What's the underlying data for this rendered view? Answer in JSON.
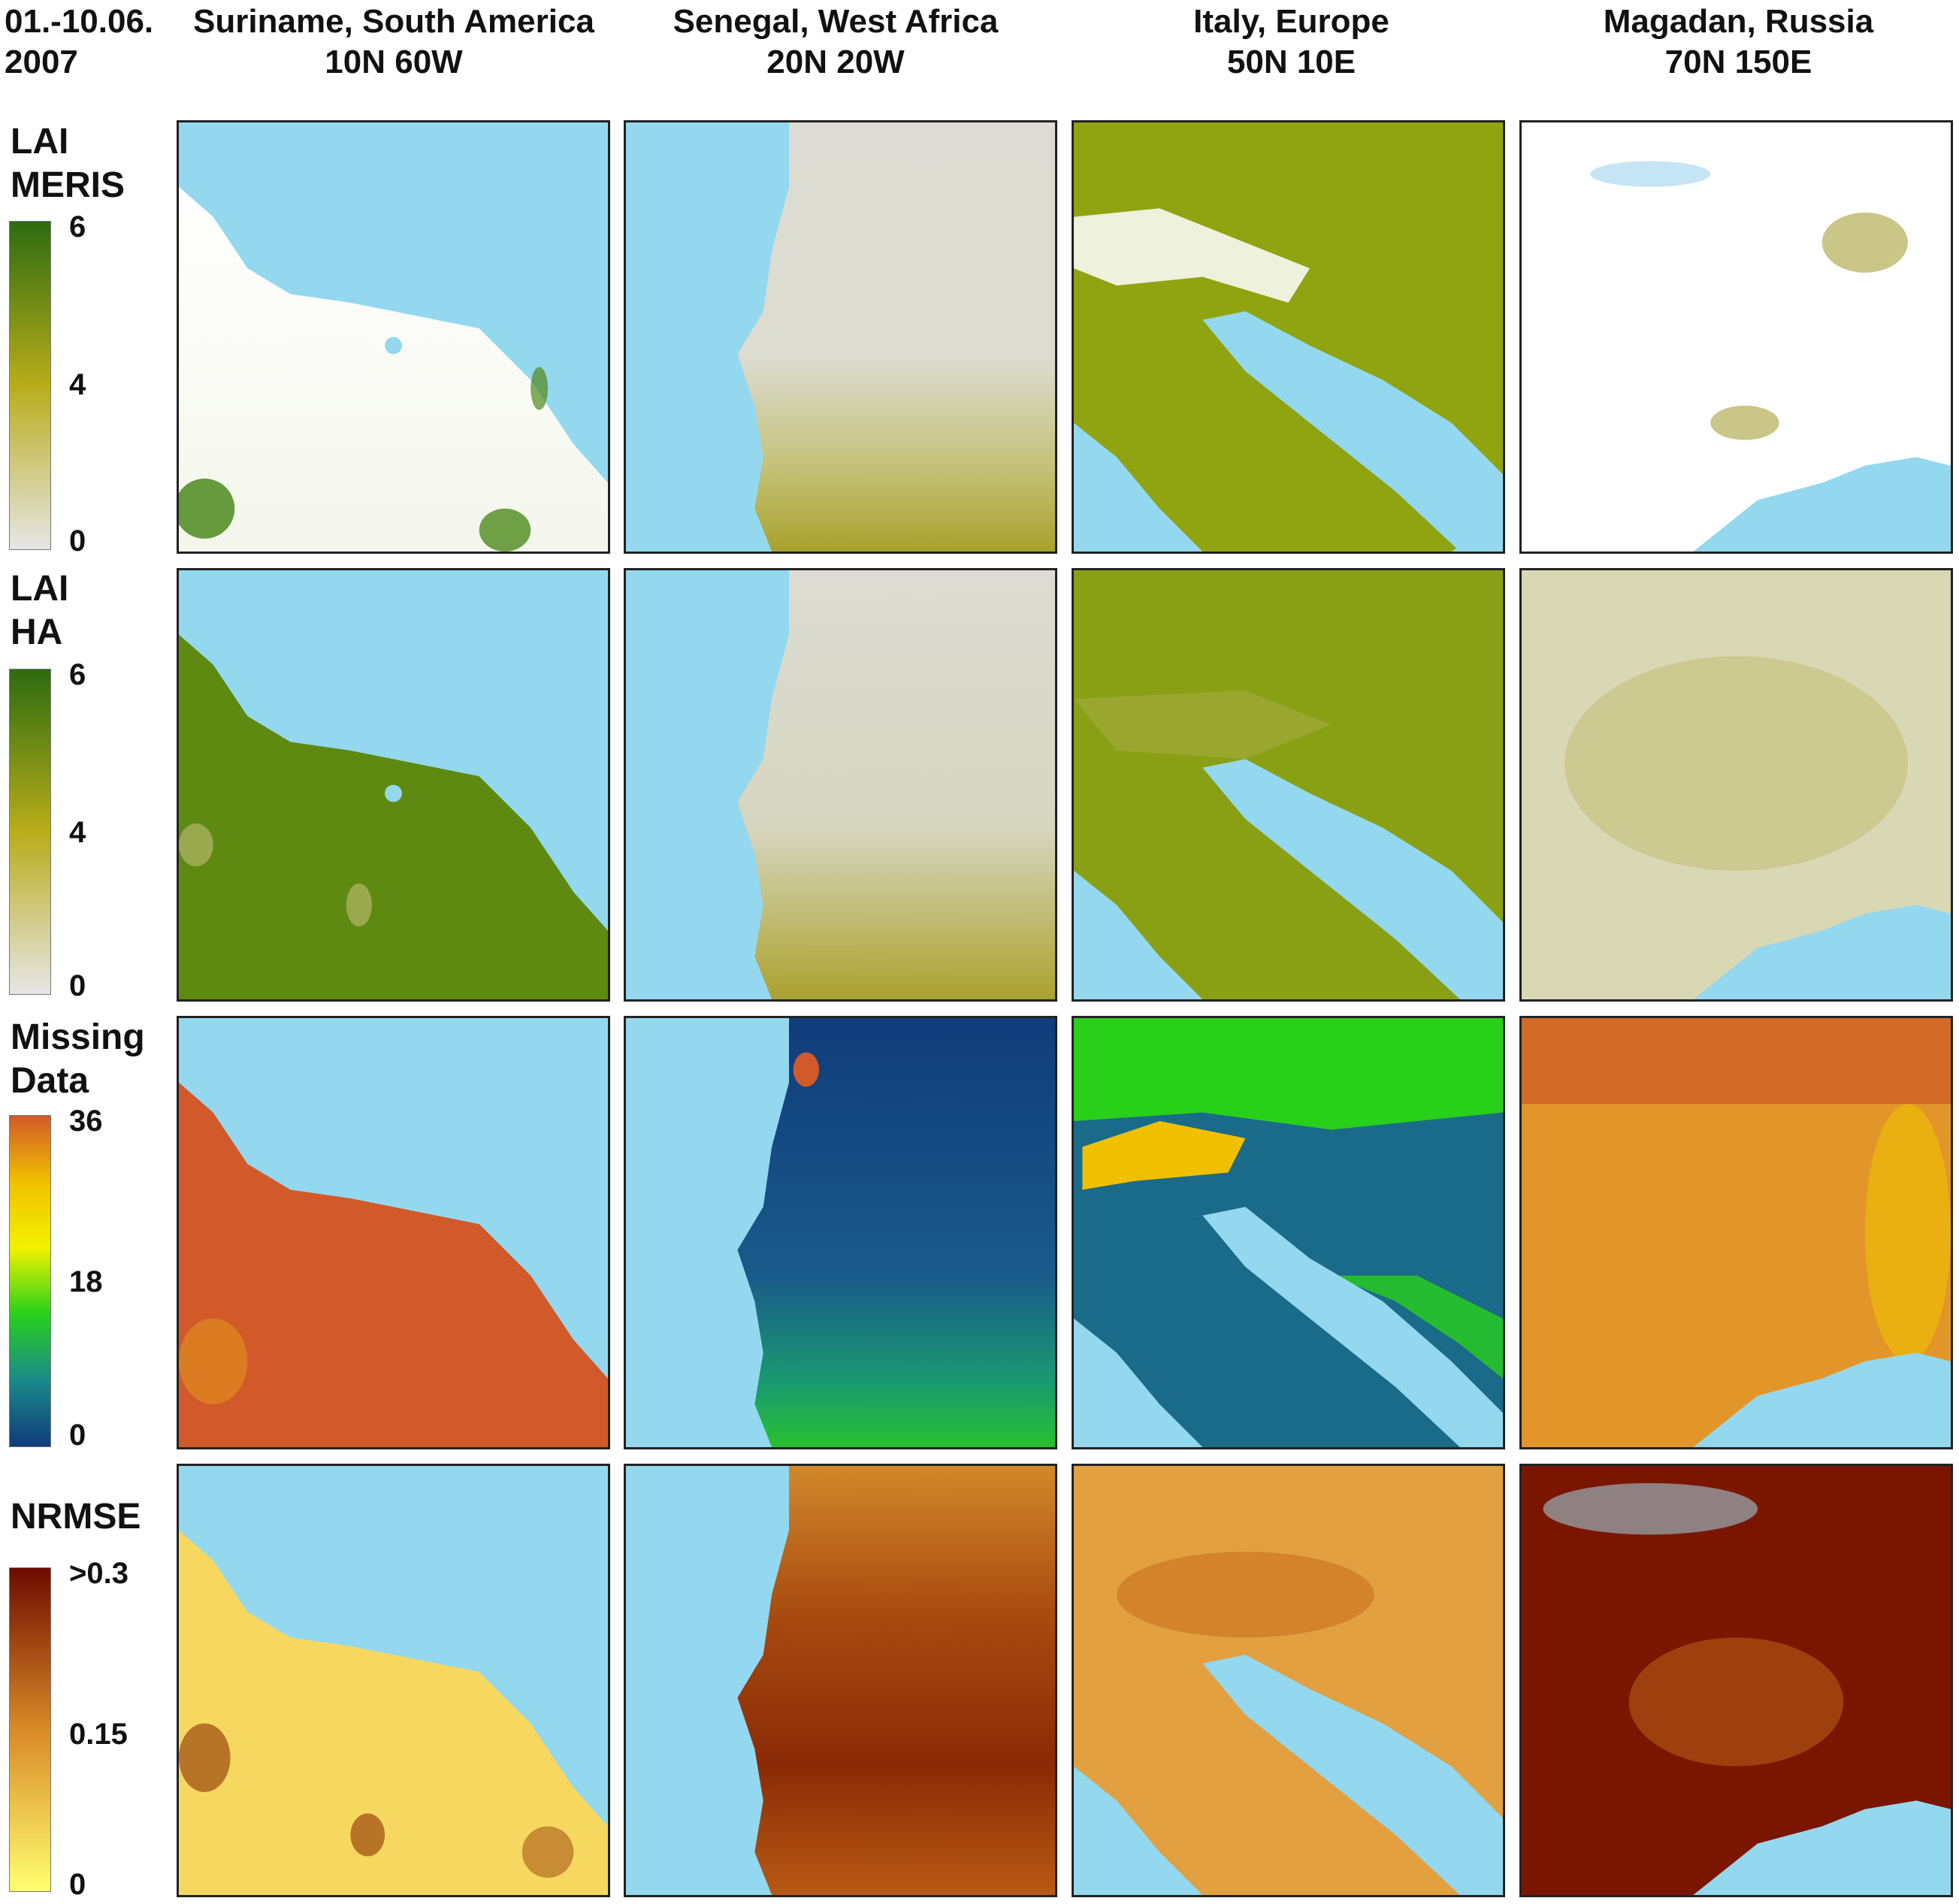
{
  "date_label": {
    "line1": "01.-10.06.",
    "line2": "2007"
  },
  "columns": [
    {
      "name": "Suriname, South America",
      "coords": "10N 60W"
    },
    {
      "name": "Senegal, West Africa",
      "coords": "20N 20W"
    },
    {
      "name": "Italy, Europe",
      "coords": "50N 10E"
    },
    {
      "name": "Magadan, Russia",
      "coords": "70N 150E"
    }
  ],
  "rows": [
    {
      "label_line1": "LAI",
      "label_line2": "MERIS",
      "colorbar": {
        "colors": [
          "#2e6b10",
          "#b8ad1a",
          "#e6e6e6"
        ],
        "ticks": {
          "top": "6",
          "mid": "4",
          "bottom": "0"
        }
      }
    },
    {
      "label_line1": "LAI",
      "label_line2": "HA",
      "colorbar": {
        "colors": [
          "#2e6b10",
          "#b8ad1a",
          "#e6e6e6"
        ],
        "ticks": {
          "top": "6",
          "mid": "4",
          "bottom": "0"
        }
      }
    },
    {
      "label_line1": "Missing",
      "label_line2": "Data",
      "colorbar": {
        "colors": [
          "#d25a2a",
          "#f0c000",
          "#f2f200",
          "#28d01a",
          "#1a8a8a",
          "#103c7a"
        ],
        "ticks": {
          "top": "36",
          "mid": "18",
          "bottom": "0"
        }
      }
    },
    {
      "label_line1": "NRMSE",
      "label_line2": "",
      "colorbar": {
        "colors": [
          "#6e0b00",
          "#d98a28",
          "#ffff70"
        ],
        "ticks": {
          "top": ">0.3",
          "mid": "0.15",
          "bottom": "0"
        }
      }
    }
  ],
  "colors": {
    "water": "#94d8ef",
    "missing": "#ffffff"
  }
}
